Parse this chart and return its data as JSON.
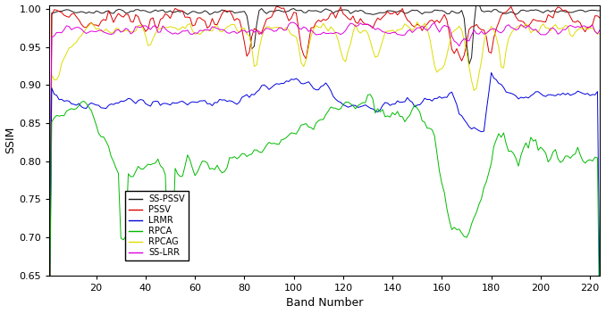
{
  "n_bands": 224,
  "ylim": [
    0.65,
    1.005
  ],
  "yticks": [
    0.65,
    0.7,
    0.75,
    0.8,
    0.85,
    0.9,
    0.95,
    1.0
  ],
  "xticks": [
    20,
    40,
    60,
    80,
    100,
    120,
    140,
    160,
    180,
    200,
    220
  ],
  "xlabel": "Band Number",
  "ylabel": "SSIM",
  "colors": {
    "SS-PSSV": "#1a1a1a",
    "PSSV": "#dd0000",
    "LRMR": "#0000dd",
    "RPCA": "#00bb00",
    "RPCAG": "#dddd00",
    "SS-LRR": "#dd00dd"
  },
  "legend_labels": [
    "SS-PSSV",
    "PSSV",
    "LRMR",
    "RPCA",
    "RPCAG",
    "SS-LRR"
  ],
  "linewidth": 0.7,
  "figsize": [
    6.78,
    3.52
  ],
  "dpi": 100
}
